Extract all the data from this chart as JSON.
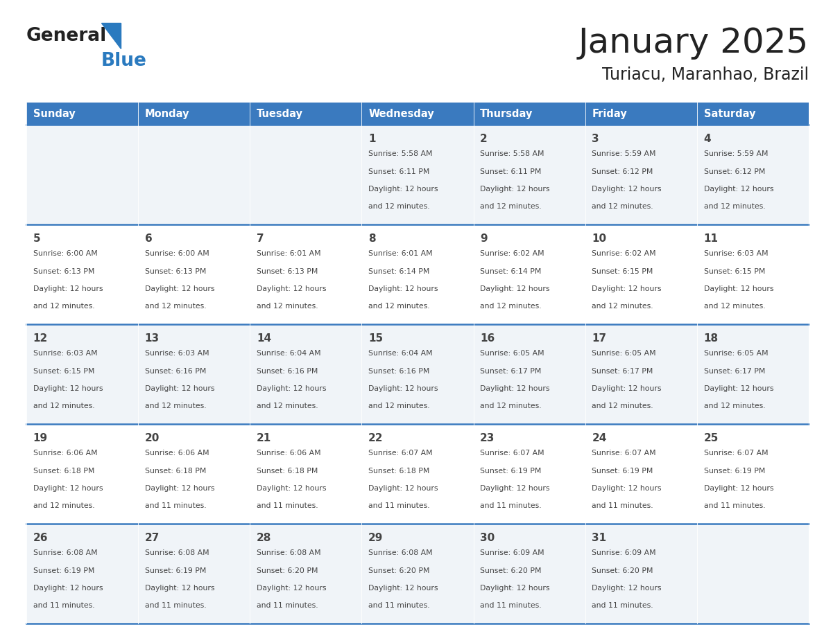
{
  "title": "January 2025",
  "subtitle": "Turiacu, Maranhao, Brazil",
  "days_of_week": [
    "Sunday",
    "Monday",
    "Tuesday",
    "Wednesday",
    "Thursday",
    "Friday",
    "Saturday"
  ],
  "header_bg": "#3a7abf",
  "header_text": "#ffffff",
  "cell_bg_odd": "#f0f4f8",
  "cell_bg_even": "#ffffff",
  "row_line_color": "#3a7abf",
  "text_color": "#444444",
  "title_color": "#222222",
  "logo_general_color": "#222222",
  "logo_blue_color": "#2a7abf",
  "logo_triangle_color": "#2a7abf",
  "calendar": [
    [
      {
        "day": "",
        "sunrise": "",
        "sunset": "",
        "daylight": ""
      },
      {
        "day": "",
        "sunrise": "",
        "sunset": "",
        "daylight": ""
      },
      {
        "day": "",
        "sunrise": "",
        "sunset": "",
        "daylight": ""
      },
      {
        "day": "1",
        "sunrise": "5:58 AM",
        "sunset": "6:11 PM",
        "daylight": "12 hours and 12 minutes."
      },
      {
        "day": "2",
        "sunrise": "5:58 AM",
        "sunset": "6:11 PM",
        "daylight": "12 hours and 12 minutes."
      },
      {
        "day": "3",
        "sunrise": "5:59 AM",
        "sunset": "6:12 PM",
        "daylight": "12 hours and 12 minutes."
      },
      {
        "day": "4",
        "sunrise": "5:59 AM",
        "sunset": "6:12 PM",
        "daylight": "12 hours and 12 minutes."
      }
    ],
    [
      {
        "day": "5",
        "sunrise": "6:00 AM",
        "sunset": "6:13 PM",
        "daylight": "12 hours and 12 minutes."
      },
      {
        "day": "6",
        "sunrise": "6:00 AM",
        "sunset": "6:13 PM",
        "daylight": "12 hours and 12 minutes."
      },
      {
        "day": "7",
        "sunrise": "6:01 AM",
        "sunset": "6:13 PM",
        "daylight": "12 hours and 12 minutes."
      },
      {
        "day": "8",
        "sunrise": "6:01 AM",
        "sunset": "6:14 PM",
        "daylight": "12 hours and 12 minutes."
      },
      {
        "day": "9",
        "sunrise": "6:02 AM",
        "sunset": "6:14 PM",
        "daylight": "12 hours and 12 minutes."
      },
      {
        "day": "10",
        "sunrise": "6:02 AM",
        "sunset": "6:15 PM",
        "daylight": "12 hours and 12 minutes."
      },
      {
        "day": "11",
        "sunrise": "6:03 AM",
        "sunset": "6:15 PM",
        "daylight": "12 hours and 12 minutes."
      }
    ],
    [
      {
        "day": "12",
        "sunrise": "6:03 AM",
        "sunset": "6:15 PM",
        "daylight": "12 hours and 12 minutes."
      },
      {
        "day": "13",
        "sunrise": "6:03 AM",
        "sunset": "6:16 PM",
        "daylight": "12 hours and 12 minutes."
      },
      {
        "day": "14",
        "sunrise": "6:04 AM",
        "sunset": "6:16 PM",
        "daylight": "12 hours and 12 minutes."
      },
      {
        "day": "15",
        "sunrise": "6:04 AM",
        "sunset": "6:16 PM",
        "daylight": "12 hours and 12 minutes."
      },
      {
        "day": "16",
        "sunrise": "6:05 AM",
        "sunset": "6:17 PM",
        "daylight": "12 hours and 12 minutes."
      },
      {
        "day": "17",
        "sunrise": "6:05 AM",
        "sunset": "6:17 PM",
        "daylight": "12 hours and 12 minutes."
      },
      {
        "day": "18",
        "sunrise": "6:05 AM",
        "sunset": "6:17 PM",
        "daylight": "12 hours and 12 minutes."
      }
    ],
    [
      {
        "day": "19",
        "sunrise": "6:06 AM",
        "sunset": "6:18 PM",
        "daylight": "12 hours and 12 minutes."
      },
      {
        "day": "20",
        "sunrise": "6:06 AM",
        "sunset": "6:18 PM",
        "daylight": "12 hours and 11 minutes."
      },
      {
        "day": "21",
        "sunrise": "6:06 AM",
        "sunset": "6:18 PM",
        "daylight": "12 hours and 11 minutes."
      },
      {
        "day": "22",
        "sunrise": "6:07 AM",
        "sunset": "6:18 PM",
        "daylight": "12 hours and 11 minutes."
      },
      {
        "day": "23",
        "sunrise": "6:07 AM",
        "sunset": "6:19 PM",
        "daylight": "12 hours and 11 minutes."
      },
      {
        "day": "24",
        "sunrise": "6:07 AM",
        "sunset": "6:19 PM",
        "daylight": "12 hours and 11 minutes."
      },
      {
        "day": "25",
        "sunrise": "6:07 AM",
        "sunset": "6:19 PM",
        "daylight": "12 hours and 11 minutes."
      }
    ],
    [
      {
        "day": "26",
        "sunrise": "6:08 AM",
        "sunset": "6:19 PM",
        "daylight": "12 hours and 11 minutes."
      },
      {
        "day": "27",
        "sunrise": "6:08 AM",
        "sunset": "6:19 PM",
        "daylight": "12 hours and 11 minutes."
      },
      {
        "day": "28",
        "sunrise": "6:08 AM",
        "sunset": "6:20 PM",
        "daylight": "12 hours and 11 minutes."
      },
      {
        "day": "29",
        "sunrise": "6:08 AM",
        "sunset": "6:20 PM",
        "daylight": "12 hours and 11 minutes."
      },
      {
        "day": "30",
        "sunrise": "6:09 AM",
        "sunset": "6:20 PM",
        "daylight": "12 hours and 11 minutes."
      },
      {
        "day": "31",
        "sunrise": "6:09 AM",
        "sunset": "6:20 PM",
        "daylight": "12 hours and 11 minutes."
      },
      {
        "day": "",
        "sunrise": "",
        "sunset": "",
        "daylight": ""
      }
    ]
  ]
}
